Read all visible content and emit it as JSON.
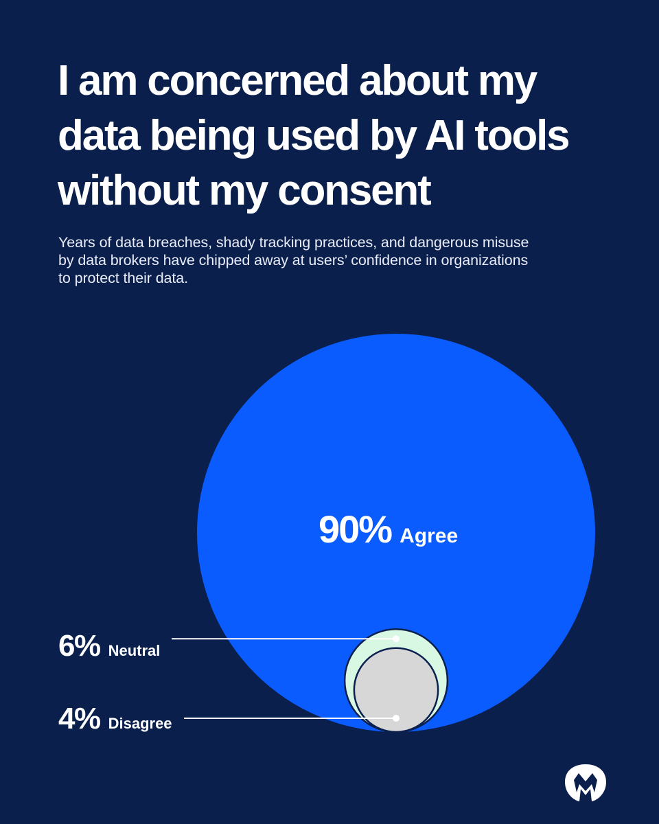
{
  "title": "I am concerned about my data being used by AI tools without my consent",
  "subtitle": "Years of data breaches, shady tracking practices, and dangerous misuse by data brokers have chipped away at users’ confidence in organizations to protect their data.",
  "colors": {
    "background": "#0b1f4d",
    "agree": "#0b5cff",
    "neutral": "#d8f8e4",
    "disagree": "#d7d7d7"
  },
  "logo": "malwarebytes-logo",
  "chart_data": {
    "type": "bubble",
    "unit": "%",
    "series": [
      {
        "label": "Agree",
        "value": 90,
        "display": "90%"
      },
      {
        "label": "Neutral",
        "value": 6,
        "display": "6%"
      },
      {
        "label": "Disagree",
        "value": 4,
        "display": "4%"
      }
    ]
  }
}
